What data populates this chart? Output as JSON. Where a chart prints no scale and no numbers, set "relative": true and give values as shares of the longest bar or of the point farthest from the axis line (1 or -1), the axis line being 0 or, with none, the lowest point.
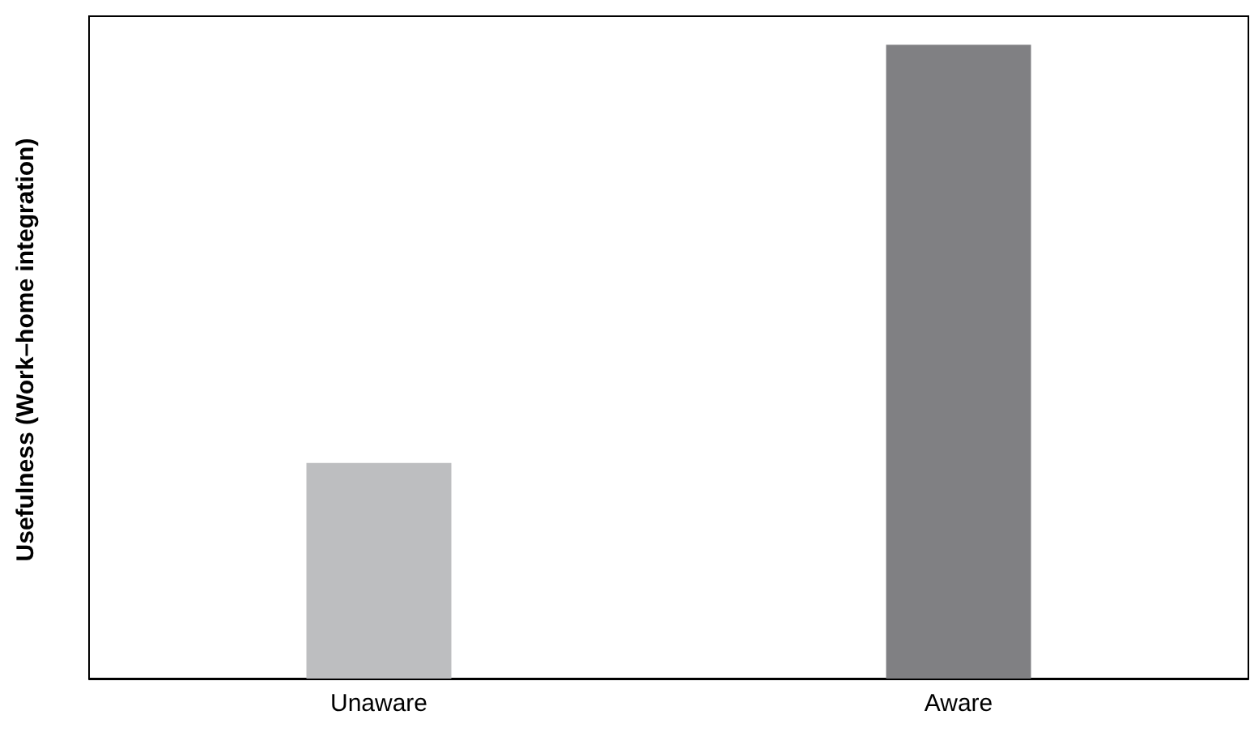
{
  "chart_data": {
    "type": "bar",
    "ylabel": "Usefulness (Work–home integration)",
    "relative": true,
    "categories": [
      "Unaware",
      "Aware"
    ],
    "values": [
      0.34,
      1
    ],
    "colors": [
      "#bdbec0",
      "#808083"
    ]
  }
}
